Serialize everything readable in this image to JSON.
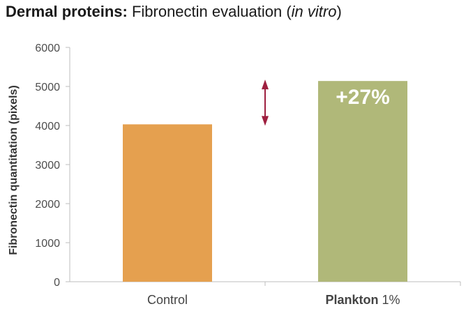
{
  "title": {
    "bold": "Dermal proteins:",
    "normal": "Fibronectin evaluation",
    "open_paren": "(",
    "italic": "in vitro",
    "close_paren": ")"
  },
  "chart_data": {
    "type": "bar",
    "categories": [
      "Control",
      "Plankton 1%"
    ],
    "category_parts": [
      {
        "main": "Control",
        "suffix": ""
      },
      {
        "main": "Plankton",
        "suffix": " 1%"
      }
    ],
    "values": [
      4030,
      5140
    ],
    "colors": [
      "#e5a04f",
      "#b0b879"
    ],
    "ylabel": "Fibronectin quantitation (pixels)",
    "ylim": [
      0,
      6000
    ],
    "yticks": [
      0,
      1000,
      2000,
      3000,
      4000,
      5000,
      6000
    ],
    "grid": false,
    "annotation": {
      "text": "+27%",
      "category": "Plankton 1%"
    },
    "arrow": {
      "from": 4030,
      "to": 5140,
      "color": "#9e1f3f"
    }
  }
}
